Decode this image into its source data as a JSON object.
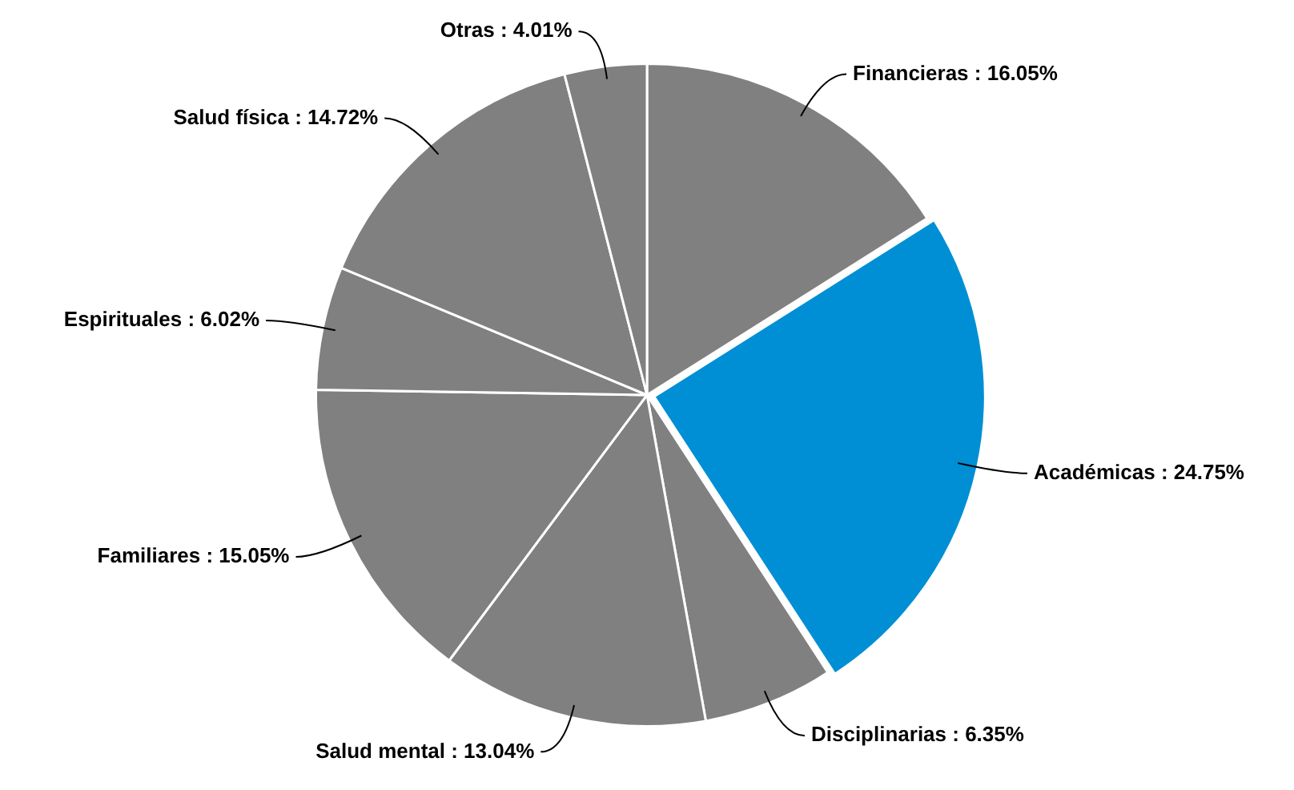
{
  "chart_data": {
    "type": "pie",
    "categories": [
      "Financieras",
      "Académicas",
      "Disciplinarias",
      "Salud mental",
      "Familiares",
      "Espirituales",
      "Salud física",
      "Otras"
    ],
    "values": [
      16.05,
      24.75,
      6.35,
      13.04,
      15.05,
      6.02,
      14.72,
      4.01
    ],
    "value_labels": [
      "16.05%",
      "24.75%",
      "6.35%",
      "13.04%",
      "15.05%",
      "6.02%",
      "14.72%",
      "4.01%"
    ],
    "colors": [
      "#808080",
      "#008fd5",
      "#808080",
      "#808080",
      "#808080",
      "#808080",
      "#808080",
      "#808080"
    ],
    "legend": false
  }
}
